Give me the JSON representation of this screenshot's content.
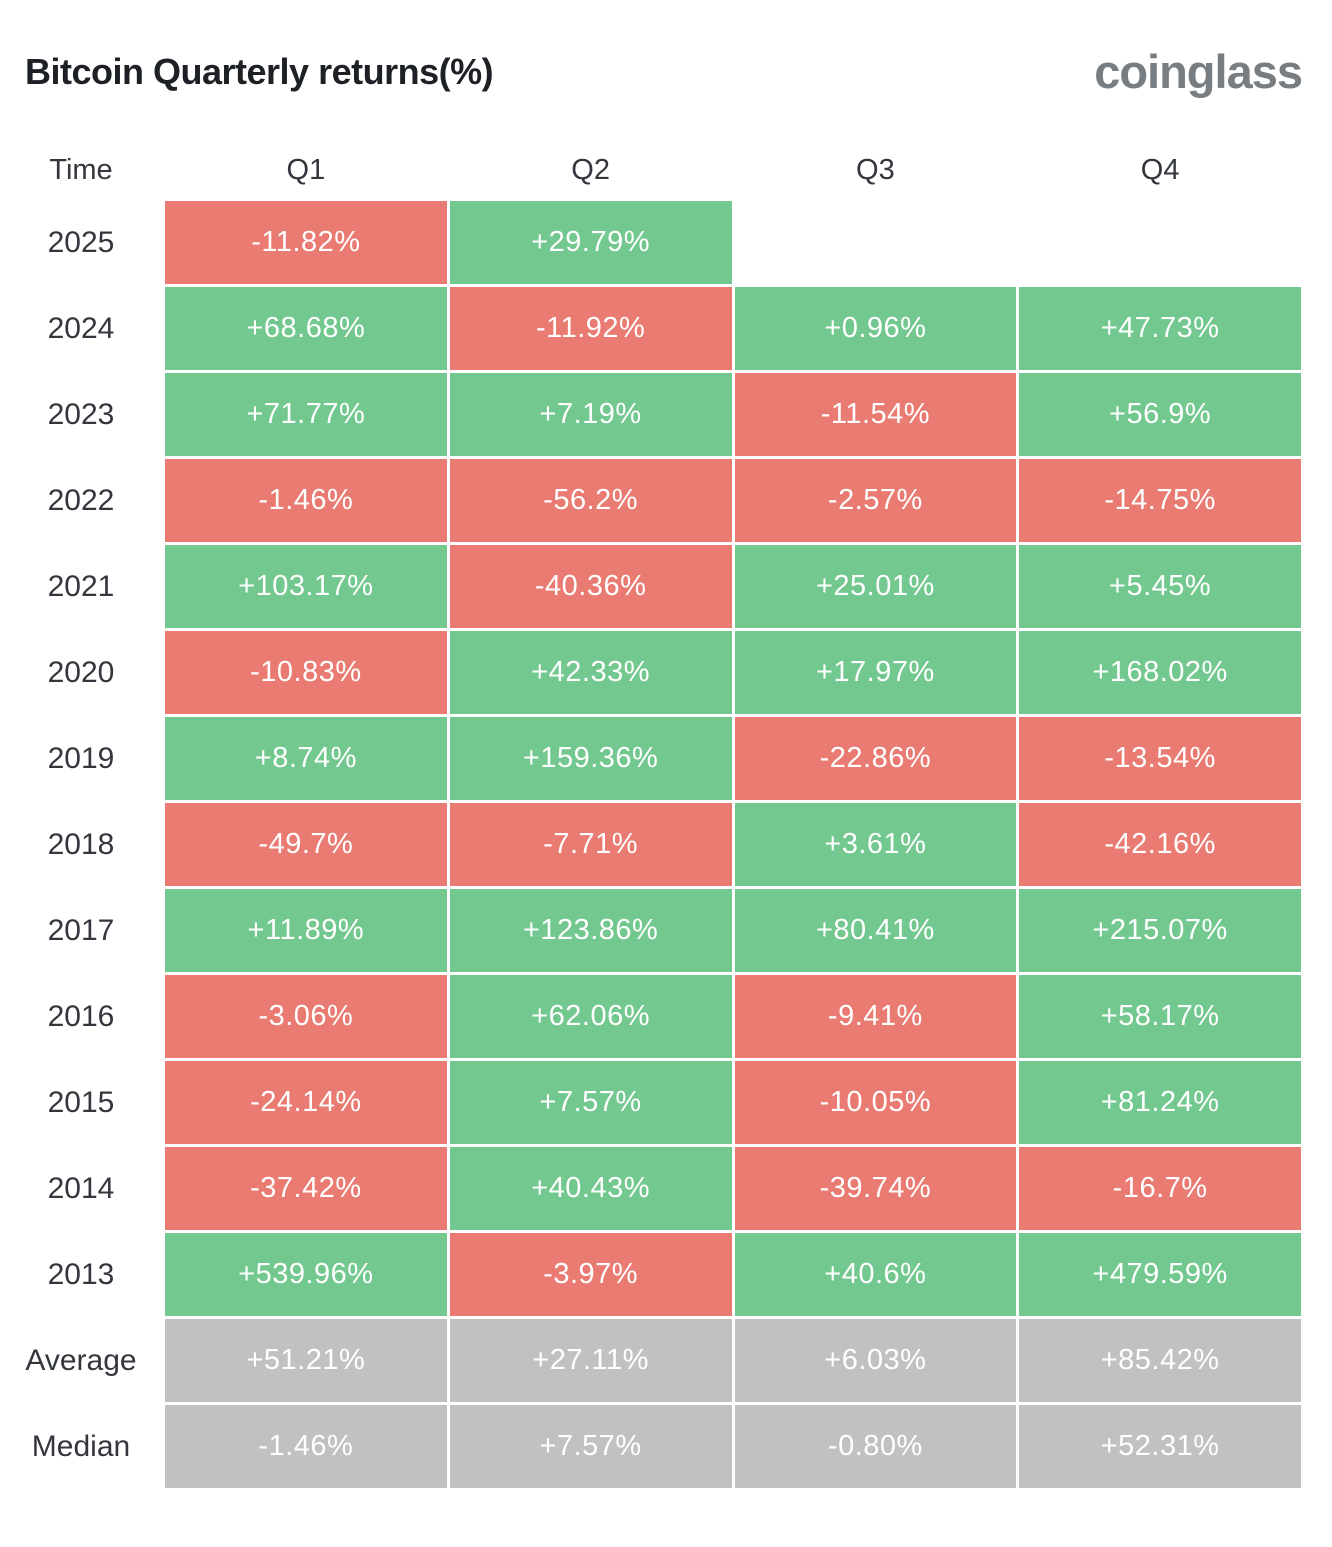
{
  "header": {
    "title": "Bitcoin Quarterly returns(%)",
    "logo": "coinglass"
  },
  "table": {
    "columns": [
      "Time",
      "Q1",
      "Q2",
      "Q3",
      "Q4"
    ],
    "rows": [
      {
        "label": "2025",
        "type": "year",
        "values": [
          "-11.82%",
          "+29.79%",
          "",
          ""
        ]
      },
      {
        "label": "2024",
        "type": "year",
        "values": [
          "+68.68%",
          "-11.92%",
          "+0.96%",
          "+47.73%"
        ]
      },
      {
        "label": "2023",
        "type": "year",
        "values": [
          "+71.77%",
          "+7.19%",
          "-11.54%",
          "+56.9%"
        ]
      },
      {
        "label": "2022",
        "type": "year",
        "values": [
          "-1.46%",
          "-56.2%",
          "-2.57%",
          "-14.75%"
        ]
      },
      {
        "label": "2021",
        "type": "year",
        "values": [
          "+103.17%",
          "-40.36%",
          "+25.01%",
          "+5.45%"
        ]
      },
      {
        "label": "2020",
        "type": "year",
        "values": [
          "-10.83%",
          "+42.33%",
          "+17.97%",
          "+168.02%"
        ]
      },
      {
        "label": "2019",
        "type": "year",
        "values": [
          "+8.74%",
          "+159.36%",
          "-22.86%",
          "-13.54%"
        ]
      },
      {
        "label": "2018",
        "type": "year",
        "values": [
          "-49.7%",
          "-7.71%",
          "+3.61%",
          "-42.16%"
        ]
      },
      {
        "label": "2017",
        "type": "year",
        "values": [
          "+11.89%",
          "+123.86%",
          "+80.41%",
          "+215.07%"
        ]
      },
      {
        "label": "2016",
        "type": "year",
        "values": [
          "-3.06%",
          "+62.06%",
          "-9.41%",
          "+58.17%"
        ]
      },
      {
        "label": "2015",
        "type": "year",
        "values": [
          "-24.14%",
          "+7.57%",
          "-10.05%",
          "+81.24%"
        ]
      },
      {
        "label": "2014",
        "type": "year",
        "values": [
          "-37.42%",
          "+40.43%",
          "-39.74%",
          "-16.7%"
        ]
      },
      {
        "label": "2013",
        "type": "year",
        "values": [
          "+539.96%",
          "-3.97%",
          "+40.6%",
          "+479.59%"
        ]
      },
      {
        "label": "Average",
        "type": "summary",
        "values": [
          "+51.21%",
          "+27.11%",
          "+6.03%",
          "+85.42%"
        ]
      },
      {
        "label": "Median",
        "type": "summary",
        "values": [
          "-1.46%",
          "+7.57%",
          "-0.80%",
          "+52.31%"
        ]
      }
    ]
  },
  "colors": {
    "positive": "#73c88f",
    "negative": "#e97b72",
    "summary": "#c1c1c1",
    "title_text": "#1d2126",
    "logo_text": "#787d82",
    "cell_text": "#ffffff"
  },
  "chart_data": {
    "type": "heatmap",
    "title": "Bitcoin Quarterly returns(%)",
    "columns": [
      "Q1",
      "Q2",
      "Q3",
      "Q4"
    ],
    "rows": [
      "2025",
      "2024",
      "2023",
      "2022",
      "2021",
      "2020",
      "2019",
      "2018",
      "2017",
      "2016",
      "2015",
      "2014",
      "2013",
      "Average",
      "Median"
    ],
    "values": [
      [
        -11.82,
        29.79,
        null,
        null
      ],
      [
        68.68,
        -11.92,
        0.96,
        47.73
      ],
      [
        71.77,
        7.19,
        -11.54,
        56.9
      ],
      [
        -1.46,
        -56.2,
        -2.57,
        -14.75
      ],
      [
        103.17,
        -40.36,
        25.01,
        5.45
      ],
      [
        -10.83,
        42.33,
        17.97,
        168.02
      ],
      [
        8.74,
        159.36,
        -22.86,
        -13.54
      ],
      [
        -49.7,
        -7.71,
        3.61,
        -42.16
      ],
      [
        11.89,
        123.86,
        80.41,
        215.07
      ],
      [
        -3.06,
        62.06,
        -9.41,
        58.17
      ],
      [
        -24.14,
        7.57,
        -10.05,
        81.24
      ],
      [
        -37.42,
        40.43,
        -39.74,
        -16.7
      ],
      [
        539.96,
        -3.97,
        40.6,
        479.59
      ],
      [
        51.21,
        27.11,
        6.03,
        85.42
      ],
      [
        -1.46,
        7.57,
        -0.8,
        52.31
      ]
    ],
    "legend": "green = positive quarterly return, red = negative quarterly return, gray = summary rows",
    "source_label": "coinglass"
  }
}
